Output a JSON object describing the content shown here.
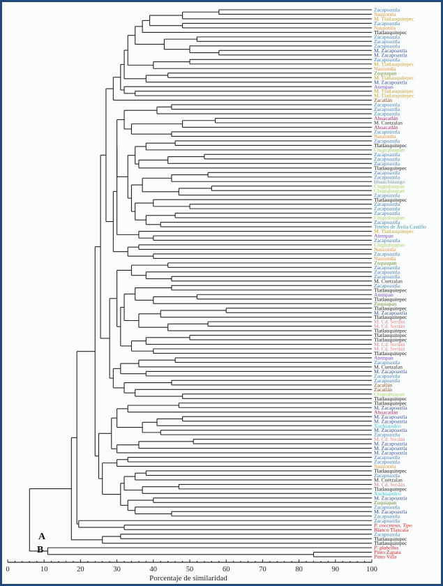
{
  "axis": {
    "title": "Porcentaje de similaridad",
    "min": 0,
    "max": 100,
    "ticks": [
      0,
      10,
      20,
      30,
      40,
      50,
      60,
      70,
      80,
      90,
      100
    ]
  },
  "groups": {
    "a": "A",
    "b": "B"
  },
  "colors": {
    "Zacapoaxtla": "#3f7fc0",
    "Nauzontla": "#e0913c",
    "M. Tlatlauquitepec": "#c9a233",
    "Tlatlauquitepec": "#111111",
    "M. Zacapoaxtla": "#34519c",
    "Zoquiapan": "#6b8a2f",
    "Atempan": "#7447c2",
    "Zacatlán": "#8a4a1f",
    "Ahuacatlán": "#b0246e",
    "M. Cuetzalan": "#333333",
    "Chignahuapan": "#a3d063",
    "Huauchinango": "#7892a2",
    "Teteles de Ávila Castillo": "#2f8fa3",
    "M. Cd. Serdán": "#e28787",
    "Xochiapulco": "#32c2e2",
    "P. coccineus, Tipo": "#d0202a",
    "Blanco Tlaxcala": "#d0202a",
    "P. glabellus": "#d0202a",
    "Pinto Zapata": "#d0202a",
    "Pinto Villa": "#d0202a",
    "line": "#222222"
  },
  "leaves": [
    "Zacapoaxtla",
    "Nauzontla",
    "M. Tlatlauquitepec",
    "Zacapoaxtla",
    "Nauzontla",
    "Tlatlauquitepec",
    "Zacapoaxtla",
    "Zacapoaxtla",
    "Zacapoaxtla",
    "M. Zacapoaxtla",
    "M. Zacapoaxtla",
    "Zacapoaxtla",
    "M. Tlatlauquitepec",
    "Nauzontla",
    "Zoquiapan",
    "M. Tlatlauquitepec",
    "M. Zacapoaxtla",
    "Atempan",
    "M. Tlatlauquitepec",
    "M. Tlatlauquitepec",
    "Zacatlán",
    "Zacapoaxtla",
    "Zacapoaxtla",
    "Zacapoaxtla",
    "Ahuacatlán",
    "M. Cuetzalan",
    "Ahuacatlán",
    "Zacapoaxtla",
    "Nauzontla",
    "Zacapoaxtla",
    "Tlatlauquitepec",
    "Chignahuapan",
    "Zacapoaxtla",
    "Zacapoaxtla",
    "Zacapoaxtla",
    "Tlatlauquitepec",
    "Zacapoaxtla",
    "Zacapoaxtla",
    "Huauchinango",
    "Chignahuapan",
    "Chignahuapan",
    "Zacapoaxtla",
    "Tlatlauquitepec",
    "Zacapoaxtla",
    "Zacapoaxtla",
    "Zacapoaxtla",
    "Chignahuapan",
    "Zacapoaxtla",
    "Teteles de Ávila Castillo",
    "M. Tlatlauquitepec",
    "Atempan",
    "Zacapoaxtla",
    "Chignahuapan",
    "Nauzontla",
    "Zacapoaxtla",
    "Nauzontla",
    "Zoquiapan",
    "Zacapoaxtla",
    "Zacapoaxtla",
    "Zacapoaxtla",
    "M. Cuetzalan",
    "Zacapoaxtla",
    "Tlatlauquitepec",
    "Atempan",
    "Tlatlauquitepec",
    "Zoquiapan",
    "Tlatlauquitepec",
    "M. Zacapoaxtla",
    "Tlatlauquitepec",
    "M. Cd. Serdán",
    "M. Cd. Serdán",
    "Tlatlauquitepec",
    "Tlatlauquitepec",
    "Tlatlauquitepec",
    "M. Cd. Serdán",
    "M. Cd. Serdán",
    "Tlatlauquitepec",
    "Atempan",
    "Zacapoaxtla",
    "M. Cuetzalan",
    "M. Zacapoaxtla",
    "Zacapoaxtla",
    "Zacapoaxtla",
    "Zacatlán",
    "Zacatlán",
    "Chignahuapan",
    "Tlatlauquitepec",
    "Tlatlauquitepec",
    "M. Zacapoaxtla",
    "Ahuacatlán",
    "M. Zacapoaxtla",
    "M. Zacapoaxtla",
    "Xochiapulco",
    "M. Zacapoaxtla",
    "Zacapoaxtla",
    "M. Cd. Serdán",
    "M. Zacapoaxtla",
    "M. Zacapoaxtla",
    "M. Zacapoaxtla",
    "Zacapoaxtla",
    "Zacapoaxtla",
    "Nauzontla",
    "Tlatlauquitepec",
    "Zacapoaxtla",
    "M. Cuetzalan",
    "M. Cd. Serdán",
    "Tlatlauquitepec",
    "Xochiapulco",
    "M. Zacapoaxtla",
    "Zoquiapan",
    "Zacapoaxtla",
    "M. Zacapoaxtla",
    "Zacapoaxtla",
    "Zacapoaxtla",
    "P. coccineus, Tipo",
    "Blanco Tlaxcala",
    "Zacapoaxtla",
    "Tlatlauquitepec",
    "Tlatlauquitepec",
    "P. glabellus",
    "Pinto Zapata",
    "Pinto Villa"
  ],
  "tree": [
    6,
    [
      17.5,
      [
        19,
        [
          24,
          [
            25.5,
            [
              27,
              [
                29,
                [
                  31,
                  [
                    32,
                    [
                      33,
                      [
                        35,
                        [
                          37,
                          [
                            39,
                            [
                              48,
                              [
                                58,
                                0,
                                1
                              ],
                              2
                            ],
                            [
                              48,
                              3,
                              4
                            ]
                          ],
                          5
                        ],
                        [
                          43,
                          [
                            52,
                            6,
                            7
                          ],
                          [
                            50,
                            8,
                            [
                              58,
                              9,
                              10
                            ]
                          ]
                        ]
                      ],
                      [
                        40,
                        [
                          50,
                          11,
                          12
                        ],
                        13
                      ]
                    ],
                    [
                      38,
                      [
                        44,
                        14,
                        15
                      ],
                      16
                    ]
                  ],
                  [
                    32,
                    17,
                    [
                      35,
                      18,
                      19
                    ]
                  ]
                ],
                20
              ],
              [
                29,
                [
                  30,
                  [
                    30,
                    [
                      32,
                      [
                        41,
                        [
                          45,
                          21,
                          22
                        ],
                        23
                      ],
                      [
                        34,
                        [
                          48,
                          [
                            57,
                            24,
                            25
                          ],
                          26
                        ],
                        [
                          45,
                          27,
                          28
                        ]
                      ]
                    ],
                    [
                      33,
                      [
                        35,
                        [
                          38,
                          [
                            46,
                            29,
                            30
                          ],
                          31
                        ],
                        [
                          36,
                          [
                            44,
                            [
                              54,
                              32,
                              33
                            ],
                            34
                          ],
                          35
                        ]
                      ],
                      [
                        34,
                        [
                          37,
                          [
                            45,
                            [
                              55,
                              36,
                              37
                            ],
                            38
                          ],
                          [
                            47,
                            [
                              56,
                              39,
                              40
                            ],
                            41
                          ]
                        ],
                        [
                          35,
                          [
                            40,
                            42,
                            [
                              50,
                              43,
                              44
                            ]
                          ],
                          [
                            38,
                            [
                              46,
                              45,
                              46
                            ],
                            [
                              42,
                              47,
                              48
                            ]
                          ]
                        ]
                      ]
                    ]
                  ],
                  [
                    36,
                    49,
                    [
                      40,
                      50,
                      51
                    ]
                  ]
                ],
                [
                  33,
                  [
                    36,
                    52,
                    53
                  ],
                  [
                    40,
                    54,
                    55
                  ]
                ]
              ]
            ],
            [
              28,
              [
                30,
                [
                  34,
                  [
                    44,
                    56,
                    57
                  ],
                  [
                    38,
                    58,
                    [
                      45,
                      59,
                      60
                    ]
                  ]
                ],
                [
                  31,
                  [
                    32,
                    [
                      35,
                      [
                        45,
                        61,
                        62
                      ],
                      [
                        40,
                        [
                          52,
                          63,
                          64
                        ],
                        65
                      ]
                    ],
                    [
                      36,
                      [
                        42,
                        [
                          60,
                          66,
                          67
                        ],
                        68
                      ],
                      [
                        44,
                        [
                          55,
                          69,
                          70
                        ],
                        71
                      ]
                    ]
                  ],
                  [
                    34,
                    [
                      38,
                      [
                        50,
                        72,
                        73
                      ],
                      74
                    ],
                    [
                      40,
                      75,
                      76
                    ]
                  ]
                ]
              ],
              [
                29,
                [
                  31,
                  [
                    36,
                    [
                      46,
                      77,
                      78
                    ],
                    79
                  ],
                  [
                    38,
                    80,
                    81
                  ]
                ],
                [
                  32,
                  [
                    45,
                    82,
                    83
                  ],
                  [
                    35,
                    84,
                    [
                      48,
                      85,
                      86
                    ]
                  ]
                ]
              ]
            ]
          ],
          [
            25,
            [
              28.5,
              [
                30,
                [
                  33,
                  [
                    47,
                    87,
                    88
                  ],
                  89
                ],
                [
                  37,
                  [
                    41,
                    [
                      48,
                      90,
                      91
                    ],
                    92
                  ],
                  [
                    42,
                    93,
                    94
                  ]
                ]
              ],
              [
                30,
                [
                  36,
                  [
                    51,
                    95,
                    96
                  ],
                  97
                ],
                98
              ]
            ],
            [
              26,
              [
                30,
                [
                  33,
                  99,
                  100
                ],
                101
              ],
              [
                31,
                [
                  32,
                  [
                    35,
                    [
                      38,
                      102,
                      103
                    ],
                    104
                  ],
                  [
                    37,
                    [
                      47,
                      105,
                      106
                    ],
                    107
                  ]
                ],
                [
                  33,
                  [
                    40,
                    108,
                    109
                  ],
                  [
                    35,
                    110,
                    [
                      45,
                      111,
                      112
                    ]
                  ]
                ]
              ]
            ]
          ]
        ],
        [
          19.5,
          113,
          [
            32,
            114,
            115
          ]
        ]
      ],
      [
        26,
        [
          31,
          116,
          117
        ],
        118
      ]
    ],
    [
      11,
      119,
      [
        84,
        120,
        121
      ]
    ]
  ]
}
